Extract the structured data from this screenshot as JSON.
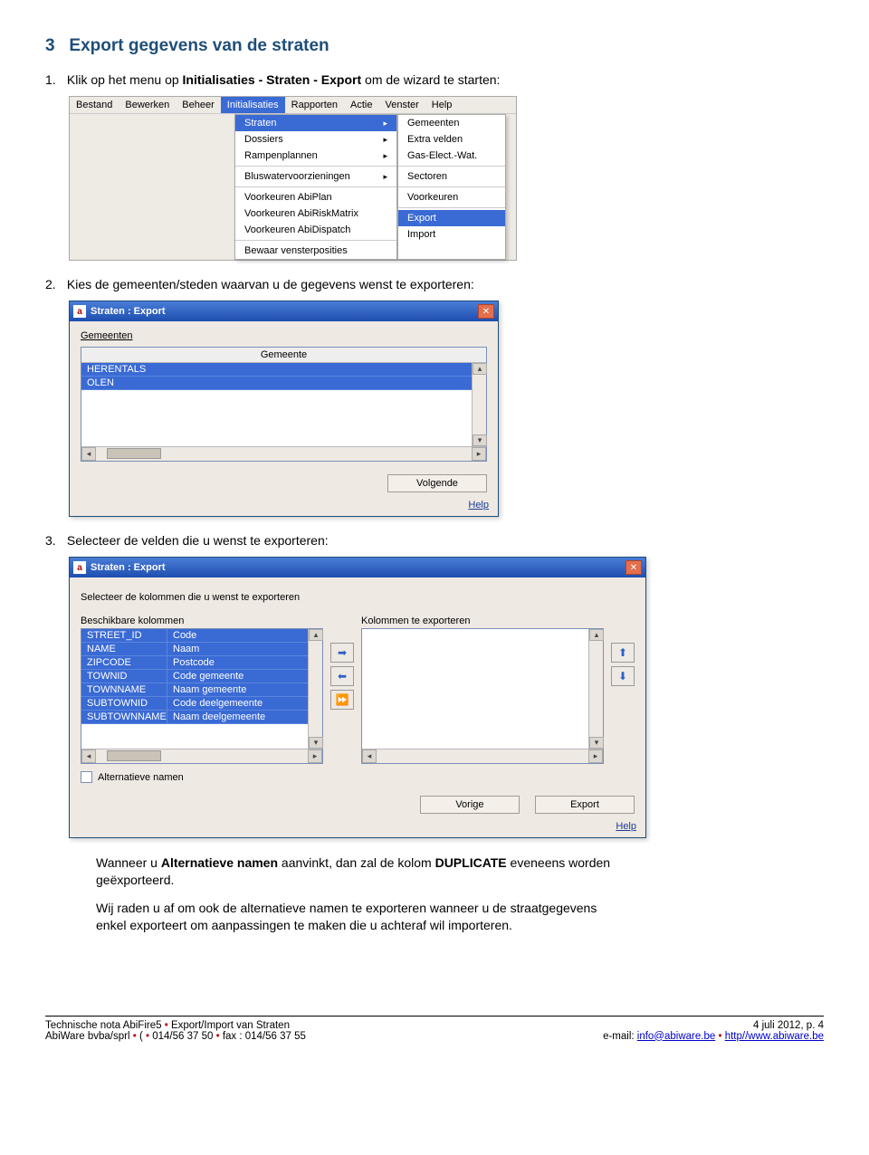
{
  "section": {
    "number": "3",
    "title": "Export gegevens van de straten"
  },
  "steps": [
    {
      "num": "1.",
      "pre": "Klik op het menu op ",
      "bold": "Initialisaties - Straten - Export",
      "post": " om de wizard te starten:"
    },
    {
      "num": "2.",
      "pre": "Kies de gemeenten/steden waarvan u de gegevens wenst te exporteren:",
      "bold": "",
      "post": ""
    },
    {
      "num": "3.",
      "pre": "Selecteer de velden die u wenst te exporteren:",
      "bold": "",
      "post": ""
    }
  ],
  "menubar": {
    "items": [
      "Bestand",
      "Bewerken",
      "Beheer",
      "Initialisaties",
      "Rapporten",
      "Actie",
      "Venster",
      "Help"
    ],
    "activeIndex": 3
  },
  "dropdown1": [
    {
      "t": "Straten",
      "arrow": true,
      "hi": true
    },
    {
      "t": "Dossiers",
      "arrow": true
    },
    {
      "t": "Rampenplannen",
      "arrow": true
    },
    {
      "sep": true
    },
    {
      "t": "Bluswatervoorzieningen",
      "arrow": true
    },
    {
      "sep": true
    },
    {
      "t": "Voorkeuren AbiPlan"
    },
    {
      "t": "Voorkeuren AbiRiskMatrix"
    },
    {
      "t": "Voorkeuren AbiDispatch"
    },
    {
      "sep": true
    },
    {
      "t": "Bewaar vensterposities"
    }
  ],
  "submenu": [
    {
      "t": "Gemeenten"
    },
    {
      "t": "Extra velden"
    },
    {
      "t": "Gas-Elect.-Wat."
    },
    {
      "sep": true
    },
    {
      "t": "Sectoren"
    },
    {
      "sep": true
    },
    {
      "t": "Voorkeuren"
    },
    {
      "sep": true
    },
    {
      "t": "Export",
      "hi": true
    },
    {
      "t": "Import"
    }
  ],
  "win1": {
    "title": "Straten : Export",
    "tab": "Gemeenten",
    "colheader": "Gemeente",
    "rows": [
      "HERENTALS",
      "OLEN"
    ],
    "next": "Volgende",
    "help": "Help"
  },
  "win2": {
    "title": "Straten : Export",
    "instr": "Selecteer de kolommen die u wenst te exporteren",
    "leftLabel": "Beschikbare kolommen",
    "rightLabel": "Kolommen te exporteren",
    "rows": [
      {
        "c1": "STREET_ID",
        "c2": "Code"
      },
      {
        "c1": "NAME",
        "c2": "Naam"
      },
      {
        "c1": "ZIPCODE",
        "c2": "Postcode"
      },
      {
        "c1": "TOWNID",
        "c2": "Code gemeente"
      },
      {
        "c1": "TOWNNAME",
        "c2": "Naam gemeente"
      },
      {
        "c1": "SUBTOWNID",
        "c2": "Code deelgemeente"
      },
      {
        "c1": "SUBTOWNNAME",
        "c2": "Naam deelgemeente"
      }
    ],
    "altnames": "Alternatieve namen",
    "prev": "Vorige",
    "export": "Export",
    "help": "Help"
  },
  "afterpara1": {
    "pre": "Wanneer u ",
    "b1": "Alternatieve namen",
    "mid": " aanvinkt, dan zal de kolom ",
    "b2": "DUPLICATE",
    "post": " eveneens worden geëxporteerd."
  },
  "afterpara2": "Wij raden u af om ook de alternatieve namen te exporteren wanneer u de straatgegevens enkel exporteert om aanpassingen te maken die u achteraf wil importeren.",
  "footer": {
    "l1a": "Technische nota AbiFire5",
    "l1b": "Export/Import van Straten",
    "l2a": "AbiWare bvba/sprl",
    "l2c": "014/56 37 50",
    "l2d": "fax : 014/56 37 55",
    "r1": "4 juli 2012, p. 4",
    "r2a": "e-mail: ",
    "r2link": "info@abiware.be",
    "r2c": "http//www.abiware.be"
  },
  "icons": {
    "right": "➡",
    "left": "⬅",
    "dright": "⏩",
    "up": "⬆",
    "down": "⬇"
  },
  "colors": {
    "heading": "#1f4e79",
    "hl": "#3a6ad4",
    "btnblue": "#2b5fc9"
  }
}
